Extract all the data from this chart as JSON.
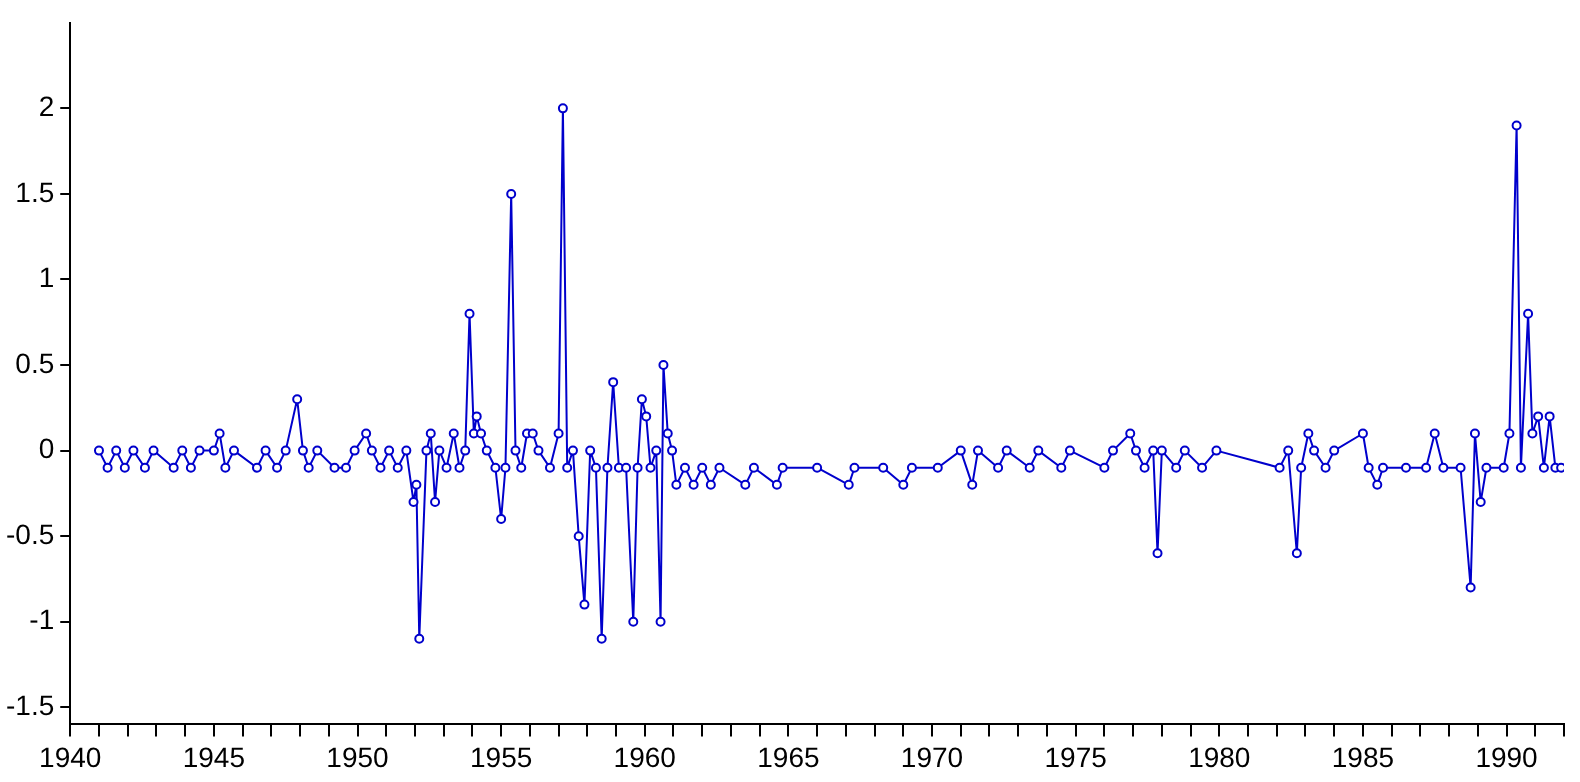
{
  "chart_data": {
    "type": "line",
    "marker": "circle",
    "grid": false,
    "legend": false,
    "xlim": [
      1940,
      1992
    ],
    "ylim": [
      -1.6,
      2.5
    ],
    "xticks": [
      1940,
      {
        "value": 1941,
        "label": null
      },
      {
        "value": 1942,
        "label": null
      },
      {
        "value": 1943,
        "label": null
      },
      {
        "value": 1944,
        "label": null
      },
      1945,
      {
        "value": 1946,
        "label": null
      },
      {
        "value": 1947,
        "label": null
      },
      {
        "value": 1948,
        "label": null
      },
      {
        "value": 1949,
        "label": null
      },
      1950,
      {
        "value": 1951,
        "label": null
      },
      {
        "value": 1952,
        "label": null
      },
      {
        "value": 1953,
        "label": null
      },
      {
        "value": 1954,
        "label": null
      },
      1955,
      {
        "value": 1956,
        "label": null
      },
      {
        "value": 1957,
        "label": null
      },
      {
        "value": 1958,
        "label": null
      },
      {
        "value": 1959,
        "label": null
      },
      1960,
      {
        "value": 1961,
        "label": null
      },
      {
        "value": 1962,
        "label": null
      },
      {
        "value": 1963,
        "label": null
      },
      {
        "value": 1964,
        "label": null
      },
      1965,
      {
        "value": 1966,
        "label": null
      },
      {
        "value": 1967,
        "label": null
      },
      {
        "value": 1968,
        "label": null
      },
      {
        "value": 1969,
        "label": null
      },
      1970,
      {
        "value": 1971,
        "label": null
      },
      {
        "value": 1972,
        "label": null
      },
      {
        "value": 1973,
        "label": null
      },
      {
        "value": 1974,
        "label": null
      },
      1975,
      {
        "value": 1976,
        "label": null
      },
      {
        "value": 1977,
        "label": null
      },
      {
        "value": 1978,
        "label": null
      },
      {
        "value": 1979,
        "label": null
      },
      1980,
      {
        "value": 1981,
        "label": null
      },
      {
        "value": 1982,
        "label": null
      },
      {
        "value": 1983,
        "label": null
      },
      {
        "value": 1984,
        "label": null
      },
      1985,
      {
        "value": 1986,
        "label": null
      },
      {
        "value": 1987,
        "label": null
      },
      {
        "value": 1988,
        "label": null
      },
      {
        "value": 1989,
        "label": null
      },
      1990,
      {
        "value": 1991,
        "label": null
      },
      {
        "value": 1992,
        "label": null
      }
    ],
    "yticks": [
      -1.5,
      -1,
      -0.5,
      0,
      0.5,
      1,
      1.5,
      2
    ],
    "series": [
      {
        "color": "#0000cc",
        "x": [
          1941.0,
          1941.3,
          1941.6,
          1941.9,
          1942.2,
          1942.6,
          1942.9,
          1943.6,
          1943.9,
          1944.2,
          1944.5,
          1945.0,
          1945.2,
          1945.4,
          1945.7,
          1946.5,
          1946.8,
          1947.2,
          1947.5,
          1947.9,
          1948.1,
          1948.3,
          1948.6,
          1949.2,
          1949.6,
          1949.9,
          1950.3,
          1950.5,
          1950.8,
          1951.1,
          1951.4,
          1951.7,
          1951.95,
          1952.05,
          1952.15,
          1952.4,
          1952.55,
          1952.7,
          1952.85,
          1953.1,
          1953.35,
          1953.55,
          1953.75,
          1953.9,
          1954.05,
          1954.15,
          1954.3,
          1954.5,
          1954.8,
          1955.0,
          1955.15,
          1955.35,
          1955.5,
          1955.7,
          1955.9,
          1956.1,
          1956.3,
          1956.7,
          1957.0,
          1957.15,
          1957.3,
          1957.5,
          1957.7,
          1957.9,
          1958.1,
          1958.3,
          1958.5,
          1958.7,
          1958.9,
          1959.1,
          1959.35,
          1959.6,
          1959.75,
          1959.9,
          1960.05,
          1960.2,
          1960.4,
          1960.55,
          1960.65,
          1960.8,
          1960.95,
          1961.1,
          1961.4,
          1961.7,
          1962.0,
          1962.3,
          1962.6,
          1963.5,
          1963.8,
          1964.6,
          1964.8,
          1966.0,
          1967.1,
          1967.3,
          1968.3,
          1969.0,
          1969.3,
          1970.2,
          1971.0,
          1971.4,
          1971.6,
          1972.3,
          1972.6,
          1973.4,
          1973.7,
          1974.5,
          1974.8,
          1976.0,
          1976.3,
          1976.9,
          1977.1,
          1977.4,
          1977.7,
          1977.85,
          1978.0,
          1978.5,
          1978.8,
          1979.4,
          1979.9,
          1982.1,
          1982.4,
          1982.7,
          1982.85,
          1983.1,
          1983.3,
          1983.7,
          1984.0,
          1985.0,
          1985.2,
          1985.5,
          1985.7,
          1986.5,
          1987.2,
          1987.5,
          1987.8,
          1988.4,
          1988.75,
          1988.9,
          1989.1,
          1989.3,
          1989.9,
          1990.1,
          1990.35,
          1990.5,
          1990.75,
          1990.9,
          1991.1,
          1991.3,
          1991.5,
          1991.7,
          1991.9
        ],
        "values": [
          0,
          -0.1,
          0,
          -0.1,
          0,
          -0.1,
          0,
          -0.1,
          0,
          -0.1,
          0,
          0,
          0.1,
          -0.1,
          0,
          -0.1,
          0,
          -0.1,
          0,
          0.3,
          0,
          -0.1,
          0,
          -0.1,
          -0.1,
          0,
          0.1,
          0,
          -0.1,
          0,
          -0.1,
          0,
          -0.3,
          -0.2,
          -1.1,
          0,
          0.1,
          -0.3,
          0,
          -0.1,
          0.1,
          -0.1,
          0,
          0.8,
          0.1,
          0.2,
          0.1,
          0,
          -0.1,
          -0.4,
          -0.1,
          1.5,
          0,
          -0.1,
          0.1,
          0.1,
          0,
          -0.1,
          0.1,
          2.0,
          -0.1,
          0,
          -0.5,
          -0.9,
          0,
          -0.1,
          -1.1,
          -0.1,
          0.4,
          -0.1,
          -0.1,
          -1.0,
          -0.1,
          0.3,
          0.2,
          -0.1,
          0,
          -1.0,
          0.5,
          0.1,
          0,
          -0.2,
          -0.1,
          -0.2,
          -0.1,
          -0.2,
          -0.1,
          -0.2,
          -0.1,
          -0.2,
          -0.1,
          -0.1,
          -0.2,
          -0.1,
          -0.1,
          -0.2,
          -0.1,
          -0.1,
          0,
          -0.2,
          0,
          -0.1,
          0,
          -0.1,
          0,
          -0.1,
          0,
          -0.1,
          0,
          0.1,
          0,
          -0.1,
          0,
          -0.6,
          0,
          -0.1,
          0,
          -0.1,
          0,
          -0.1,
          0,
          -0.6,
          -0.1,
          0.1,
          0,
          -0.1,
          0,
          0.1,
          -0.1,
          -0.2,
          -0.1,
          -0.1,
          -0.1,
          0.1,
          -0.1,
          -0.1,
          -0.8,
          0.1,
          -0.3,
          -0.1,
          -0.1,
          0.1,
          1.9,
          -0.1,
          0.8,
          0.1,
          0.2,
          -0.1,
          0.2,
          -0.1,
          -0.1
        ]
      }
    ]
  }
}
